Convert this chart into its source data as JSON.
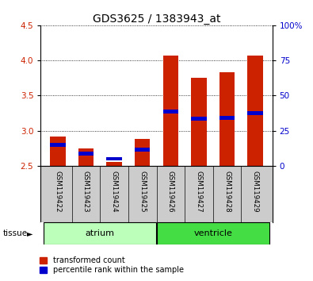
{
  "title": "GDS3625 / 1383943_at",
  "samples": [
    "GSM119422",
    "GSM119423",
    "GSM119424",
    "GSM119425",
    "GSM119426",
    "GSM119427",
    "GSM119428",
    "GSM119429"
  ],
  "red_values": [
    2.92,
    2.75,
    2.55,
    2.88,
    4.07,
    3.75,
    3.83,
    4.07
  ],
  "blue_values": [
    2.8,
    2.67,
    2.6,
    2.73,
    3.27,
    3.17,
    3.18,
    3.25
  ],
  "baseline": 2.5,
  "ylim_left": [
    2.5,
    4.5
  ],
  "ylim_right": [
    0,
    100
  ],
  "yticks_left": [
    2.5,
    3.0,
    3.5,
    4.0,
    4.5
  ],
  "yticks_right": [
    0,
    25,
    50,
    75,
    100
  ],
  "ytick_labels_right": [
    "0",
    "25",
    "50",
    "75",
    "100%"
  ],
  "tissue_groups": [
    {
      "label": "atrium",
      "start": 0,
      "end": 3,
      "color": "#bbffbb"
    },
    {
      "label": "ventricle",
      "start": 4,
      "end": 7,
      "color": "#44dd44"
    }
  ],
  "tissue_label": "tissue",
  "legend_red": "transformed count",
  "legend_blue": "percentile rank within the sample",
  "bar_width": 0.55,
  "red_color": "#cc2200",
  "blue_color": "#0000cc",
  "bg_color": "#ffffff",
  "plot_bg": "#ffffff",
  "sample_bg": "#cccccc",
  "title_fontsize": 10,
  "tick_fontsize": 7.5,
  "label_fontsize": 8
}
